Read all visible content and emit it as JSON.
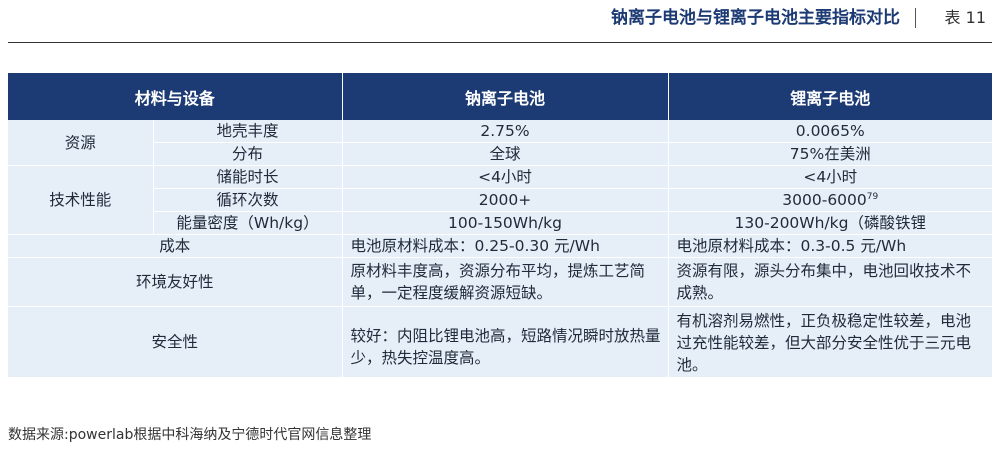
{
  "header": {
    "title": "钠离子电池与锂离子电池主要指标对比",
    "tag": "表 11"
  },
  "table": {
    "columns": [
      "材料与设备",
      "钠离子电池",
      "锂离子电池"
    ],
    "groups": {
      "resources": "资源",
      "tech": "技术性能"
    },
    "rows": {
      "crust": {
        "label": "地壳丰度",
        "sodium": "2.75%",
        "lithium": "0.0065%"
      },
      "distribution": {
        "label": "分布",
        "sodium": "全球",
        "lithium": "75%在美洲"
      },
      "storage": {
        "label": "储能时长",
        "sodium": "<4小时",
        "lithium": "<4小时"
      },
      "cycles": {
        "label": "循环次数",
        "sodium": "2000+",
        "lithium": "3000-6000",
        "lithium_sup": "79"
      },
      "density": {
        "label": "能量密度（Wh/kg）",
        "sodium": "100-150Wh/kg",
        "lithium": "130-200Wh/kg（磷酸铁锂"
      },
      "cost": {
        "label": "成本",
        "sodium": "电池原材料成本：0.25-0.30 元/Wh",
        "lithium": "电池原材料成本：0.3-0.5 元/Wh"
      },
      "environment": {
        "label": "环境友好性",
        "sodium": "原材料丰度高，资源分布平均，提炼工艺简单，一定程度缓解资源短缺。",
        "lithium": "资源有限，源头分布集中，电池回收技术不成熟。"
      },
      "safety": {
        "label": "安全性",
        "sodium": "较好：内阻比锂电池高，短路情况瞬时放热量少，热失控温度高。",
        "lithium": "有机溶剂易燃性，正负极稳定性较差，电池过充性能较差，但大部分安全性优于三元电池。"
      }
    }
  },
  "source": "数据来源:powerlab根据中科海纳及宁德时代官网信息整理"
}
